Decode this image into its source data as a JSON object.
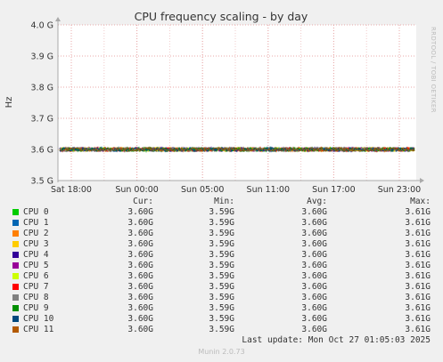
{
  "chart_data": {
    "type": "line",
    "title": "CPU frequency scaling - by day",
    "ylabel": "Hz",
    "ylim": [
      3.5,
      4.0
    ],
    "yticks": [
      "3.5 G",
      "3.6 G",
      "3.7 G",
      "3.8 G",
      "3.9 G",
      "4.0 G"
    ],
    "ytick_values": [
      3.5,
      3.6,
      3.7,
      3.8,
      3.9,
      4.0
    ],
    "xticks": [
      "Sat 18:00",
      "Sun 00:00",
      "Sun 05:00",
      "Sun 11:00",
      "Sun 17:00",
      "Sun 23:00"
    ],
    "grid": true,
    "series": [
      {
        "name": "CPU 0",
        "approx_value": 3.6
      },
      {
        "name": "CPU 1",
        "approx_value": 3.6
      },
      {
        "name": "CPU 2",
        "approx_value": 3.6
      },
      {
        "name": "CPU 3",
        "approx_value": 3.6
      },
      {
        "name": "CPU 4",
        "approx_value": 3.6
      },
      {
        "name": "CPU 5",
        "approx_value": 3.6
      },
      {
        "name": "CPU 6",
        "approx_value": 3.6
      },
      {
        "name": "CPU 7",
        "approx_value": 3.6
      },
      {
        "name": "CPU 8",
        "approx_value": 3.6
      },
      {
        "name": "CPU 9",
        "approx_value": 3.6
      },
      {
        "name": "CPU 10",
        "approx_value": 3.6
      },
      {
        "name": "CPU 11",
        "approx_value": 3.6
      }
    ]
  },
  "legend": {
    "headers": {
      "cur": "Cur:",
      "min": "Min:",
      "avg": "Avg:",
      "max": "Max:"
    },
    "rows": [
      {
        "name": "CPU 0",
        "color": "#00cc00",
        "cur": "3.60G",
        "min": "3.59G",
        "avg": "3.60G",
        "max": "3.61G"
      },
      {
        "name": "CPU 1",
        "color": "#0066b3",
        "cur": "3.60G",
        "min": "3.59G",
        "avg": "3.60G",
        "max": "3.61G"
      },
      {
        "name": "CPU 2",
        "color": "#ff8000",
        "cur": "3.60G",
        "min": "3.59G",
        "avg": "3.60G",
        "max": "3.61G"
      },
      {
        "name": "CPU 3",
        "color": "#ffcc00",
        "cur": "3.60G",
        "min": "3.59G",
        "avg": "3.60G",
        "max": "3.61G"
      },
      {
        "name": "CPU 4",
        "color": "#330099",
        "cur": "3.60G",
        "min": "3.59G",
        "avg": "3.60G",
        "max": "3.61G"
      },
      {
        "name": "CPU 5",
        "color": "#990099",
        "cur": "3.60G",
        "min": "3.59G",
        "avg": "3.60G",
        "max": "3.61G"
      },
      {
        "name": "CPU 6",
        "color": "#ccff00",
        "cur": "3.60G",
        "min": "3.59G",
        "avg": "3.60G",
        "max": "3.61G"
      },
      {
        "name": "CPU 7",
        "color": "#ff0000",
        "cur": "3.60G",
        "min": "3.59G",
        "avg": "3.60G",
        "max": "3.61G"
      },
      {
        "name": "CPU 8",
        "color": "#808080",
        "cur": "3.60G",
        "min": "3.59G",
        "avg": "3.60G",
        "max": "3.61G"
      },
      {
        "name": "CPU 9",
        "color": "#008f00",
        "cur": "3.60G",
        "min": "3.59G",
        "avg": "3.60G",
        "max": "3.61G"
      },
      {
        "name": "CPU 10",
        "color": "#00487d",
        "cur": "3.60G",
        "min": "3.59G",
        "avg": "3.60G",
        "max": "3.61G"
      },
      {
        "name": "CPU 11",
        "color": "#b35a00",
        "cur": "3.60G",
        "min": "3.59G",
        "avg": "3.60G",
        "max": "3.61G"
      }
    ]
  },
  "last_update": "Last update: Mon Oct 27 01:05:03 2025",
  "footer": "Munin 2.0.73",
  "watermark": "RRDTOOL / TOBI OETIKER",
  "colors": {
    "background": "#f0f0f0",
    "plot_background": "#ffffff",
    "grid": "#e8a8a8",
    "line": "#8a5a1a"
  }
}
